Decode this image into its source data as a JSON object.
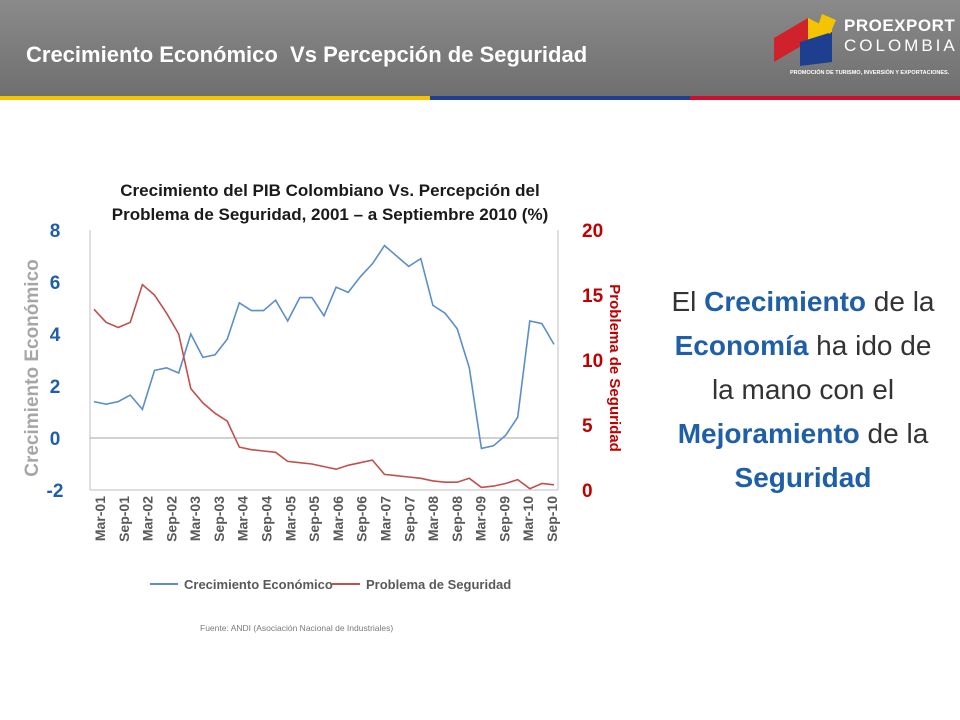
{
  "header": {
    "title": "Crecimiento Económico  Vs Percepción de Seguridad",
    "logo": {
      "name": "PROEXPORT",
      "sub": "COLOMBIA",
      "tagline": "PROMOCIÓN DE TURISMO, INVERSIÓN Y EXPORTACIONES."
    }
  },
  "colors": {
    "header_bg": "#7a7a7a",
    "stripe_yellow": "#f5c400",
    "stripe_blue": "#1e3f8f",
    "stripe_red": "#c8102e",
    "series_blue": "#5b8ec9",
    "series_red": "#c0504d",
    "axis_blue": "#1f5fa8",
    "axis_red": "#c00000"
  },
  "chart_data": {
    "type": "line",
    "title": "Crecimiento del PIB Colombiano Vs. Percepción del\nProblema de Seguridad,  2001 – a Septiembre 2010 (%)",
    "ylabel_left": "Crecimiento Económico",
    "ylabel_right": "Problema de Seguridad",
    "ylim_left": [
      -2,
      8
    ],
    "ylim_right": [
      0,
      20
    ],
    "left_ticks": [
      "8",
      "6",
      "4",
      "2",
      "0",
      "-2"
    ],
    "right_ticks": [
      "20",
      "15",
      "10",
      "5",
      "0"
    ],
    "tick_labels": [
      "Mar-01",
      "Sep-01",
      "Mar-02",
      "Sep-02",
      "Mar-03",
      "Sep-03",
      "Mar-04",
      "Sep-04",
      "Mar-05",
      "Sep-05",
      "Mar-06",
      "Sep-06",
      "Mar-07",
      "Sep-07",
      "Mar-08",
      "Sep-08",
      "Mar-09",
      "Sep-09",
      "Mar-10",
      "Sep-10"
    ],
    "legend_position": "bottom",
    "grid": false,
    "series": [
      {
        "name": "Crecimiento Económico",
        "axis": "left",
        "values": [
          1.4,
          1.3,
          1.4,
          1.65,
          1.1,
          2.6,
          2.7,
          2.5,
          4.0,
          3.1,
          3.2,
          3.8,
          5.2,
          4.9,
          4.9,
          5.3,
          4.5,
          5.4,
          5.4,
          4.7,
          5.8,
          5.6,
          6.2,
          6.7,
          7.4,
          7.0,
          6.6,
          6.9,
          5.1,
          4.8,
          4.2,
          2.7,
          -0.4,
          -0.3,
          0.1,
          0.8,
          4.5,
          4.4,
          3.6
        ]
      },
      {
        "name": "Problema de Seguridad",
        "axis": "right",
        "values": [
          13.9,
          12.9,
          12.5,
          12.9,
          15.8,
          15.0,
          13.6,
          12.0,
          7.8,
          6.7,
          5.9,
          5.3,
          3.3,
          3.1,
          3.0,
          2.9,
          2.2,
          2.1,
          2.0,
          1.8,
          1.6,
          1.9,
          2.1,
          2.3,
          1.2,
          1.1,
          1.0,
          0.9,
          0.7,
          0.6,
          0.6,
          0.9,
          0.2,
          0.3,
          0.5,
          0.8,
          0.1,
          0.5,
          0.4
        ]
      }
    ]
  },
  "source": "Fuente: ANDI (Asociación Nacional de Industriales)",
  "message": {
    "p1": "El ",
    "h1": "Crecimiento",
    "p2": " de la ",
    "h2": "Economía",
    "p3": " ha ido de la mano con el  ",
    "h3": "Mejoramiento",
    "p4": " de la ",
    "h4": "Seguridad"
  }
}
